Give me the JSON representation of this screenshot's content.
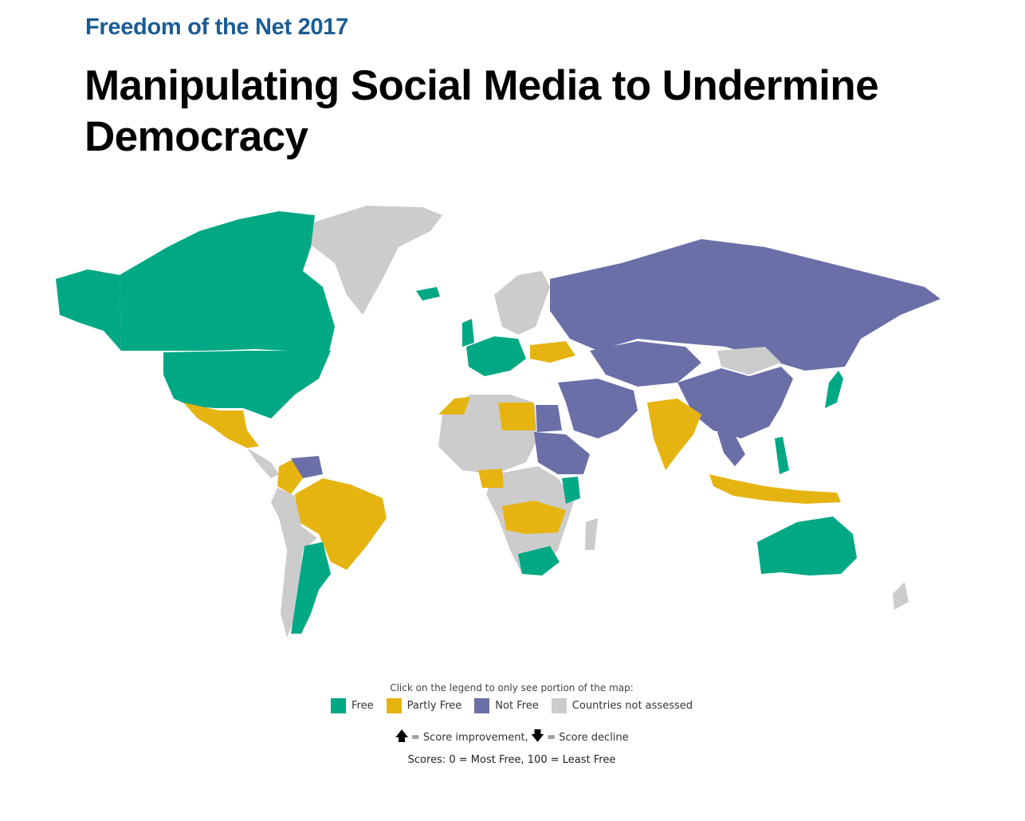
{
  "header": {
    "kicker": "Freedom of the Net 2017",
    "title": "Manipulating Social Media to Undermine Democracy"
  },
  "legend": {
    "hint": "Click on the legend to only see portion of the map:",
    "items": [
      {
        "label": "Free",
        "color": "#00a884"
      },
      {
        "label": "Partly Free",
        "color": "#e6b410"
      },
      {
        "label": "Not Free",
        "color": "#6b6fa8"
      },
      {
        "label": "Countries not assessed",
        "color": "#cccccc"
      }
    ],
    "improvement_text": "= Score improvement,",
    "decline_text": "= Score decline",
    "scale_note": "Scores: 0 = Most Free, 100 = Least Free"
  },
  "map": {
    "regions": [
      {
        "name": "canada",
        "status": "Free"
      },
      {
        "name": "united-states",
        "status": "Free"
      },
      {
        "name": "mexico",
        "status": "Partly Free"
      },
      {
        "name": "greenland",
        "status": "Countries not assessed"
      },
      {
        "name": "brazil",
        "status": "Partly Free"
      },
      {
        "name": "argentina",
        "status": "Free"
      },
      {
        "name": "russia",
        "status": "Not Free"
      },
      {
        "name": "china",
        "status": "Not Free"
      },
      {
        "name": "india",
        "status": "Partly Free"
      },
      {
        "name": "australia",
        "status": "Free"
      },
      {
        "name": "south-africa",
        "status": "Free"
      },
      {
        "name": "indonesia",
        "status": "Partly Free"
      }
    ]
  }
}
